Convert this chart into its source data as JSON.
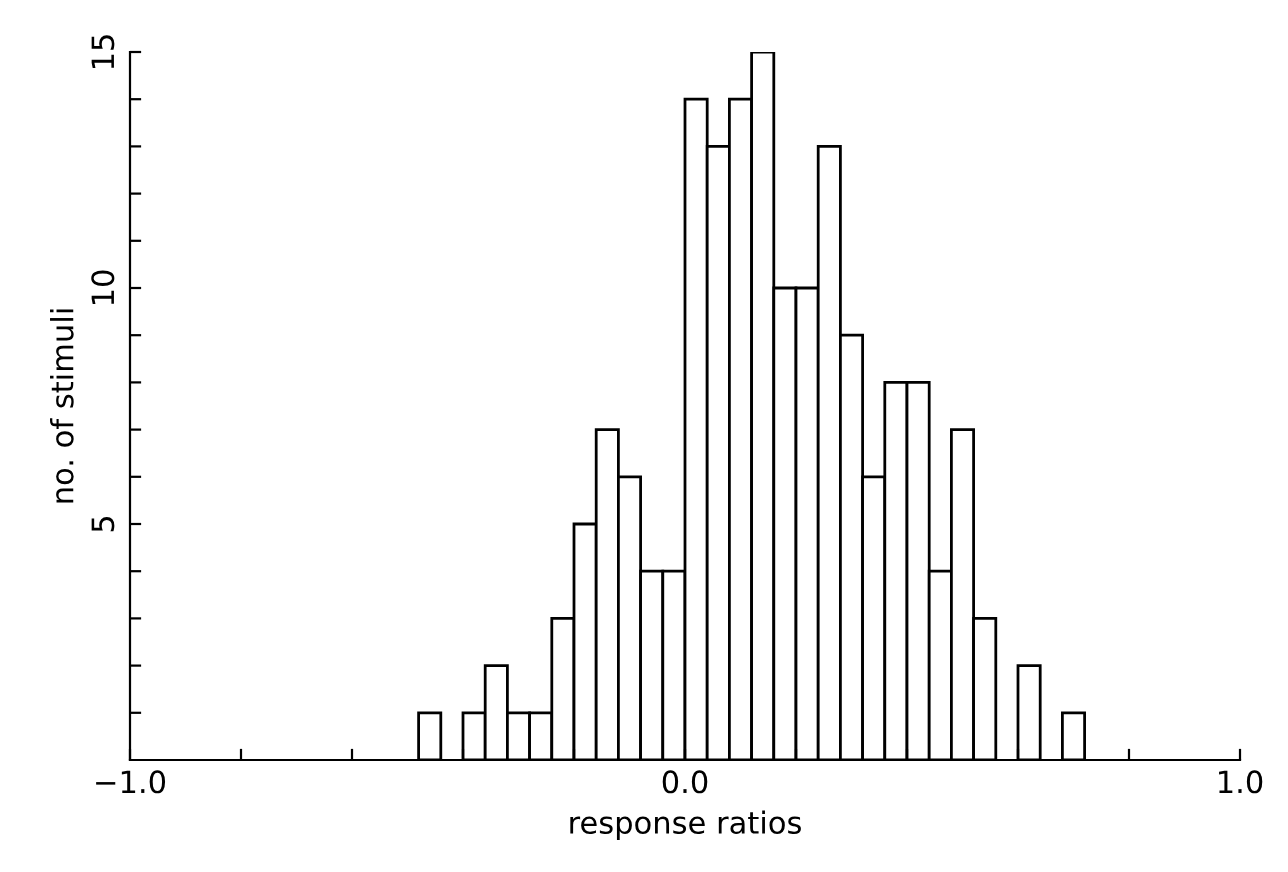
{
  "chart_data": {
    "type": "histogram",
    "xlabel": "response ratios",
    "ylabel": "no. of stimuli",
    "bins": [
      -0.48,
      -0.44,
      -0.4,
      -0.36,
      -0.32,
      -0.28,
      -0.24,
      -0.2,
      -0.16,
      -0.12,
      -0.08,
      -0.04,
      0.0,
      0.04,
      0.08,
      0.12,
      0.16,
      0.2,
      0.24,
      0.28,
      0.32,
      0.36,
      0.4,
      0.44,
      0.48,
      0.52,
      0.56,
      0.6,
      0.64,
      0.68,
      0.72
    ],
    "values": [
      1,
      0,
      1,
      2,
      1,
      1,
      3,
      5,
      7,
      6,
      4,
      4,
      14,
      13,
      14,
      15,
      10,
      10,
      13,
      9,
      6,
      8,
      8,
      4,
      7,
      3,
      0,
      2,
      0,
      1
    ],
    "color": "#ffffff",
    "xlim": [
      -1.0,
      1.0
    ],
    "xticks": [
      {
        "value": -1.0,
        "label": "−1.0"
      },
      {
        "value": -0.8,
        "label": null
      },
      {
        "value": -0.6,
        "label": null
      },
      {
        "value": -0.4,
        "label": null
      },
      {
        "value": -0.2,
        "label": null
      },
      {
        "value": 0.0,
        "label": "0.0"
      },
      {
        "value": 0.2,
        "label": null
      },
      {
        "value": 0.4,
        "label": null
      },
      {
        "value": 0.6,
        "label": null
      },
      {
        "value": 0.8,
        "label": null
      },
      {
        "value": 1.0,
        "label": "1.0"
      }
    ],
    "ylim": [
      0,
      15
    ],
    "yticks": [
      {
        "value": 1,
        "label": null
      },
      {
        "value": 2,
        "label": null
      },
      {
        "value": 3,
        "label": null
      },
      {
        "value": 4,
        "label": null
      },
      5,
      {
        "value": 6,
        "label": null
      },
      {
        "value": 7,
        "label": null
      },
      {
        "value": 8,
        "label": null
      },
      {
        "value": 9,
        "label": null
      },
      10,
      {
        "value": 11,
        "label": null
      },
      {
        "value": 12,
        "label": null
      },
      {
        "value": 13,
        "label": null
      },
      {
        "value": 14,
        "label": null
      },
      15
    ],
    "grid": false,
    "legend": false
  }
}
